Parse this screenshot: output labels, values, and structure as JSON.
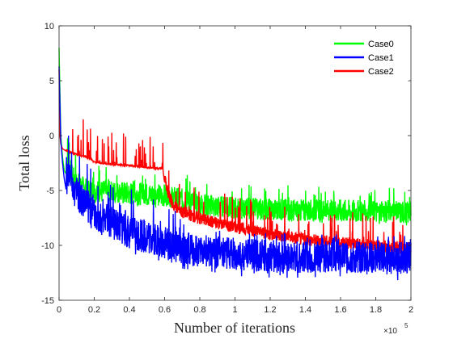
{
  "chart_data": {
    "type": "line",
    "title": "",
    "xlabel": "Number of iterations",
    "ylabel": "Total loss",
    "x_exponent": {
      "base": "×10",
      "power": "5"
    },
    "xlim": [
      0,
      2
    ],
    "ylim": [
      -15,
      10
    ],
    "xticks": [
      "0",
      "0.2",
      "0.4",
      "0.6",
      "0.8",
      "1",
      "1.2",
      "1.4",
      "1.6",
      "1.8",
      "2"
    ],
    "yticks": [
      "10",
      "5",
      "0",
      "-5",
      "-10",
      "-15"
    ],
    "grid": false,
    "legend_position": "top-right",
    "series": [
      {
        "name": "Case0",
        "color": "#00ff00",
        "x": [
          0,
          0.01,
          0.02,
          0.03,
          0.05,
          0.08,
          0.1,
          0.15,
          0.2,
          0.3,
          0.4,
          0.5,
          0.6,
          0.7,
          0.8,
          1.0,
          1.2,
          1.4,
          1.6,
          1.8,
          2.0
        ],
        "values": [
          8,
          0,
          -2,
          -3.2,
          -3.8,
          -5,
          -5.5,
          -6,
          -6.2,
          -6.3,
          -6.4,
          -6.5,
          -6.6,
          -7,
          -7.4,
          -7.8,
          -7.9,
          -8,
          -8,
          -8.1,
          -8.2
        ],
        "spike_max": [
          -3,
          -4,
          -4,
          -3.3,
          -3.5,
          -3.2,
          -3.5,
          -3.5,
          -3.5,
          -3.5,
          -3.5,
          -4,
          -4,
          -4.5
        ]
      },
      {
        "name": "Case1",
        "color": "#0000ff",
        "x": [
          0,
          0.01,
          0.02,
          0.03,
          0.05,
          0.08,
          0.1,
          0.15,
          0.2,
          0.3,
          0.4,
          0.5,
          0.6,
          0.7,
          0.8,
          1.0,
          1.2,
          1.4,
          1.6,
          1.8,
          2.0
        ],
        "values": [
          6.3,
          -0.5,
          -2.5,
          -4,
          -5.8,
          -6.8,
          -7.3,
          -8.3,
          -9,
          -10,
          -10.8,
          -11.3,
          -11.8,
          -12.2,
          -12.5,
          -12.8,
          -13,
          -13.1,
          -13.1,
          -13.15,
          -13.2
        ]
      },
      {
        "name": "Case2",
        "color": "#ff0000",
        "x": [
          0,
          0.005,
          0.01,
          0.02,
          0.05,
          0.1,
          0.15,
          0.18,
          0.2,
          0.3,
          0.4,
          0.5,
          0.59,
          0.6,
          0.62,
          0.65,
          0.7,
          0.8,
          1.0,
          1.2,
          1.4,
          1.6,
          1.8,
          2.0
        ],
        "values": [
          6,
          0,
          -0.8,
          -1.2,
          -1.5,
          -1.8,
          -2.0,
          -2.2,
          -2.5,
          -2.7,
          -2.8,
          -3.0,
          -3.1,
          -4.5,
          -6.0,
          -7.0,
          -7.6,
          -8.2,
          -9.0,
          -9.6,
          -10.1,
          -10.4,
          -10.7,
          -10.9
        ]
      }
    ]
  }
}
